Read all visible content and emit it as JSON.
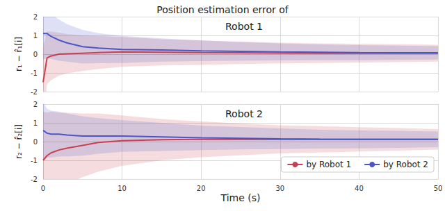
{
  "title": "Position estimation error of",
  "chart_data": [
    {
      "type": "line",
      "title": "Robot 1",
      "ylabel": "r₁ − r̂₁[i]",
      "x": [
        0,
        0.5,
        1,
        2,
        3,
        5,
        7,
        10,
        15,
        20,
        25,
        30,
        35,
        40,
        45,
        50
      ],
      "xlim": [
        0,
        50
      ],
      "xticks": [
        0,
        10,
        20,
        30,
        40,
        50
      ],
      "ylim": [
        -2,
        2
      ],
      "yticks": [
        -2,
        -1,
        0,
        1,
        2
      ],
      "grid": true,
      "tick_labels": "y",
      "series": [
        {
          "name": "by Robot 1",
          "color": "#c8404f",
          "values": [
            -1.5,
            -0.2,
            -0.1,
            0,
            0.02,
            0.05,
            0.08,
            0.12,
            0.1,
            0.08,
            0.07,
            0.06,
            0.05,
            0.05,
            0.05,
            0.05
          ],
          "error": [
            1.9,
            1.4,
            1.3,
            1.15,
            1.05,
            0.95,
            0.88,
            0.8,
            0.7,
            0.65,
            0.6,
            0.55,
            0.52,
            0.5,
            0.48,
            0.45
          ]
        },
        {
          "name": "by Robot 2",
          "color": "#4a56c6",
          "values": [
            1.1,
            1.1,
            0.95,
            0.75,
            0.6,
            0.4,
            0.32,
            0.25,
            0.22,
            0.18,
            0.15,
            0.12,
            0.1,
            0.08,
            0.07,
            0.07
          ],
          "error": [
            1.4,
            1.3,
            1.2,
            1.1,
            1.0,
            0.9,
            0.8,
            0.72,
            0.62,
            0.55,
            0.5,
            0.45,
            0.42,
            0.4,
            0.38,
            0.36
          ]
        }
      ]
    },
    {
      "type": "line",
      "title": "Robot 2",
      "ylabel": "r₂ − r̂₂[i]",
      "xlabel": "Time (s)",
      "x": [
        0,
        0.5,
        1,
        2,
        3,
        5,
        7,
        10,
        15,
        20,
        25,
        30,
        35,
        40,
        45,
        50
      ],
      "xlim": [
        0,
        50
      ],
      "xticks": [
        0,
        10,
        20,
        30,
        40,
        50
      ],
      "ylim": [
        -2,
        2
      ],
      "yticks": [
        -2,
        -1,
        0,
        1,
        2
      ],
      "grid": true,
      "legend": "lower right",
      "series": [
        {
          "name": "by Robot 1",
          "color": "#c8404f",
          "values": [
            -1.0,
            -0.75,
            -0.6,
            -0.45,
            -0.35,
            -0.2,
            -0.05,
            0.05,
            0.1,
            0.12,
            0.12,
            0.12,
            0.12,
            0.12,
            0.12,
            0.12
          ],
          "error": [
            2.6,
            2.3,
            2.2,
            2.0,
            1.9,
            1.7,
            1.55,
            1.35,
            1.1,
            0.95,
            0.85,
            0.75,
            0.7,
            0.65,
            0.6,
            0.55
          ]
        },
        {
          "name": "by Robot 2",
          "color": "#4a56c6",
          "values": [
            0.6,
            0.45,
            0.4,
            0.4,
            0.35,
            0.3,
            0.3,
            0.3,
            0.25,
            0.2,
            0.18,
            0.15,
            0.13,
            0.12,
            0.12,
            0.12
          ],
          "error": [
            1.5,
            1.3,
            1.25,
            1.2,
            1.15,
            1.05,
            0.95,
            0.85,
            0.75,
            0.65,
            0.6,
            0.55,
            0.5,
            0.48,
            0.45,
            0.42
          ]
        }
      ]
    }
  ]
}
